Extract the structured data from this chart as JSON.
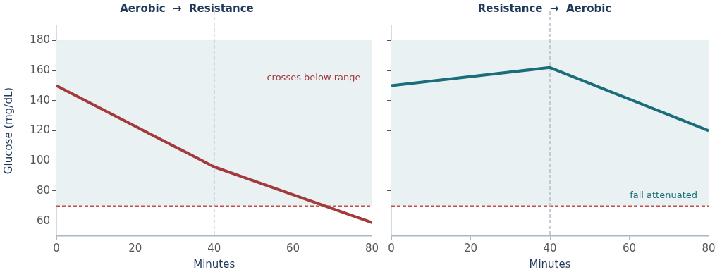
{
  "chart_data": [
    {
      "type": "line",
      "title": "Aerobic  →  Resistance",
      "xlabel": "Minutes",
      "ylabel": "Glucose (mg/dL)",
      "x": [
        0,
        40,
        80
      ],
      "series": [
        {
          "color": "#a33b3c",
          "values": [
            150,
            96,
            59
          ]
        }
      ],
      "xlim": [
        0,
        80
      ],
      "xticks": [
        0,
        20,
        40,
        60,
        80
      ],
      "ylim": [
        50,
        190
      ],
      "yticks": [
        60,
        80,
        100,
        120,
        140,
        160,
        180
      ],
      "grid": "y",
      "bands": [
        {
          "axis": "y",
          "from": 70,
          "to": 180,
          "color": "#e9f1f3"
        }
      ],
      "ref_lines": [
        {
          "axis": "y",
          "value": 70,
          "color": "#c0504d",
          "line_style": "dashed"
        },
        {
          "axis": "x",
          "value": 40,
          "color": "#b3bfcb",
          "line_style": "dashed"
        }
      ],
      "annotations": [
        "crosses below range"
      ]
    },
    {
      "type": "line",
      "title": "Resistance  →  Aerobic",
      "xlabel": "Minutes",
      "x": [
        0,
        40,
        80
      ],
      "series": [
        {
          "color": "#1a6e79",
          "values": [
            150,
            162,
            120
          ]
        }
      ],
      "xlim": [
        0,
        80
      ],
      "xticks": [
        0,
        20,
        40,
        60,
        80
      ],
      "ylim": [
        50,
        190
      ],
      "yticks": [
        60,
        80,
        100,
        120,
        140,
        160,
        180
      ],
      "tick_labels": "x",
      "grid": "y",
      "bands": [
        {
          "axis": "y",
          "from": 70,
          "to": 180,
          "color": "#e9f1f3"
        }
      ],
      "ref_lines": [
        {
          "axis": "y",
          "value": 70,
          "color": "#c0504d",
          "line_style": "dashed"
        },
        {
          "axis": "x",
          "value": 40,
          "color": "#b3bfcb",
          "line_style": "dashed"
        }
      ],
      "annotations": [
        "fall attenuated"
      ]
    }
  ]
}
